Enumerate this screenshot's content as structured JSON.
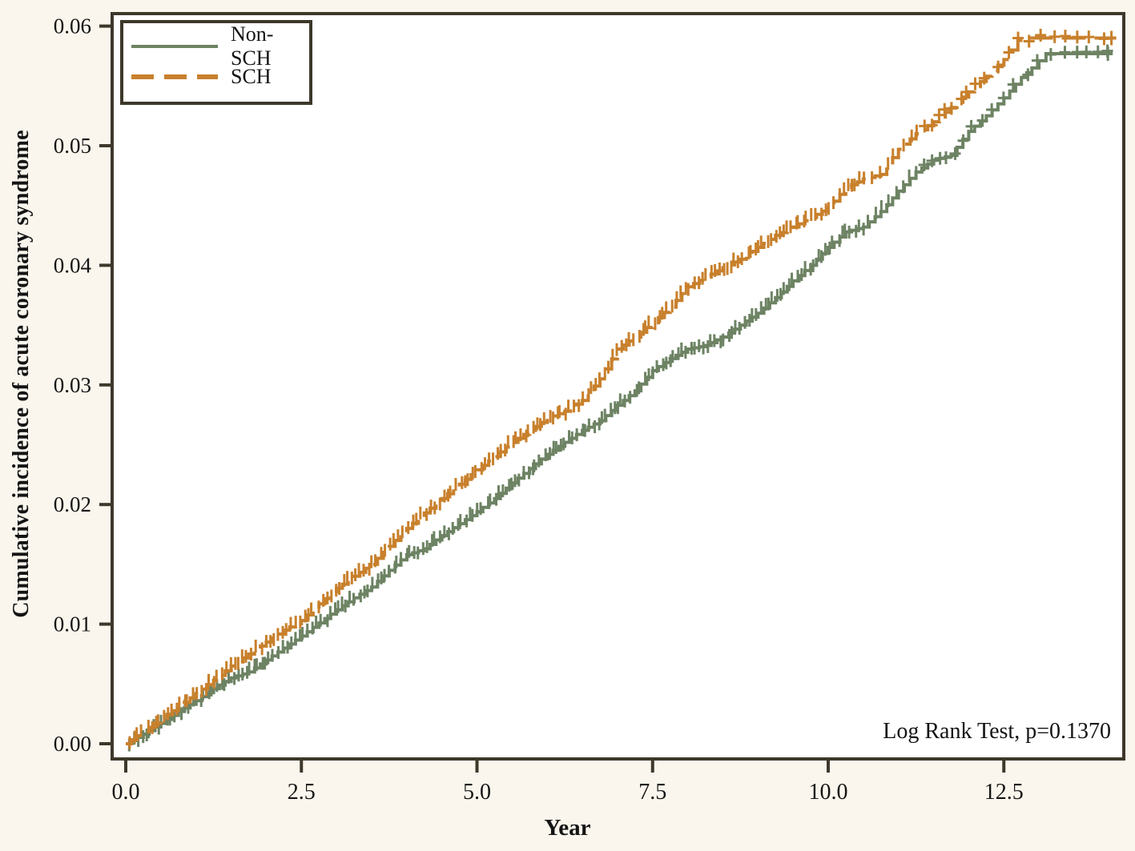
{
  "figure": {
    "x_label": "Year",
    "y_label": "Cumulative incidence of acute coronary syndrome",
    "annotation": "Log Rank Test, p=0.1370"
  },
  "colors": {
    "background": "#faf6ed",
    "plot_background": "#ffffff",
    "frame": "#3e382b",
    "text": "#141414",
    "non_sch": "#6d8363",
    "sch": "#c8802c"
  },
  "chart_data": {
    "type": "line",
    "subtype": "kaplan-meier-cumulative-incidence",
    "title": "",
    "xlabel": "Year",
    "ylabel": "Cumulative incidence of acute coronary syndrome",
    "xlim": [
      -0.2,
      14.2
    ],
    "ylim": [
      -0.001,
      0.061
    ],
    "x_ticks": [
      0.0,
      2.5,
      5.0,
      7.5,
      10.0,
      12.5
    ],
    "x_tick_labels": [
      "0.0",
      "2.5",
      "5.0",
      "7.5",
      "10.0",
      "12.5"
    ],
    "y_ticks": [
      0.0,
      0.01,
      0.02,
      0.03,
      0.04,
      0.05,
      0.06
    ],
    "y_tick_labels": [
      "0.00",
      "0.01",
      "0.02",
      "0.03",
      "0.04",
      "0.05",
      "0.06"
    ],
    "grid": false,
    "legend_position": "top-left",
    "annotation": "Log Rank Test, p=0.1370",
    "series": [
      {
        "name": "Non-SCH",
        "color": "#6d8363",
        "style": "solid",
        "censor_marks": true,
        "points": [
          [
            0,
            0
          ],
          [
            0.25,
            0.0008
          ],
          [
            0.5,
            0.0017
          ],
          [
            0.75,
            0.0027
          ],
          [
            1,
            0.0036
          ],
          [
            1.25,
            0.0046
          ],
          [
            1.5,
            0.0055
          ],
          [
            1.75,
            0.006
          ],
          [
            2,
            0.007
          ],
          [
            2.25,
            0.008
          ],
          [
            2.5,
            0.009
          ],
          [
            2.75,
            0.0101
          ],
          [
            3,
            0.0112
          ],
          [
            3.25,
            0.0122
          ],
          [
            3.5,
            0.0131
          ],
          [
            3.75,
            0.0145
          ],
          [
            4,
            0.0158
          ],
          [
            4.25,
            0.0163
          ],
          [
            4.5,
            0.0174
          ],
          [
            4.75,
            0.0184
          ],
          [
            5,
            0.0194
          ],
          [
            5.25,
            0.0205
          ],
          [
            5.5,
            0.0218
          ],
          [
            5.75,
            0.023
          ],
          [
            6,
            0.0242
          ],
          [
            6.25,
            0.0252
          ],
          [
            6.5,
            0.0262
          ],
          [
            6.75,
            0.027
          ],
          [
            7,
            0.0283
          ],
          [
            7.25,
            0.0295
          ],
          [
            7.5,
            0.0312
          ],
          [
            7.75,
            0.0322
          ],
          [
            8,
            0.033
          ],
          [
            8.25,
            0.0333
          ],
          [
            8.5,
            0.034
          ],
          [
            8.75,
            0.035
          ],
          [
            9,
            0.036
          ],
          [
            9.25,
            0.0373
          ],
          [
            9.5,
            0.0387
          ],
          [
            9.75,
            0.04
          ],
          [
            10,
            0.0415
          ],
          [
            10.25,
            0.0428
          ],
          [
            10.5,
            0.0432
          ],
          [
            10.75,
            0.0445
          ],
          [
            11,
            0.0462
          ],
          [
            11.25,
            0.0478
          ],
          [
            11.5,
            0.0488
          ],
          [
            11.75,
            0.0492
          ],
          [
            12,
            0.0512
          ],
          [
            12.25,
            0.0525
          ],
          [
            12.5,
            0.054
          ],
          [
            12.75,
            0.0557
          ],
          [
            12.9,
            0.0565
          ],
          [
            13.1,
            0.0577
          ],
          [
            14.05,
            0.0577
          ]
        ]
      },
      {
        "name": "SCH",
        "color": "#c8802c",
        "style": "dashed",
        "censor_marks": true,
        "points": [
          [
            0,
            0
          ],
          [
            0.25,
            0.001
          ],
          [
            0.5,
            0.0021
          ],
          [
            0.75,
            0.0031
          ],
          [
            1,
            0.0042
          ],
          [
            1.25,
            0.0053
          ],
          [
            1.5,
            0.0065
          ],
          [
            1.75,
            0.0075
          ],
          [
            2,
            0.0085
          ],
          [
            2.25,
            0.0095
          ],
          [
            2.5,
            0.0103
          ],
          [
            2.75,
            0.0117
          ],
          [
            3,
            0.013
          ],
          [
            3.25,
            0.014
          ],
          [
            3.5,
            0.015
          ],
          [
            3.75,
            0.0165
          ],
          [
            4,
            0.018
          ],
          [
            4.25,
            0.0193
          ],
          [
            4.5,
            0.0205
          ],
          [
            4.75,
            0.0217
          ],
          [
            5,
            0.0229
          ],
          [
            5.25,
            0.024
          ],
          [
            5.5,
            0.0252
          ],
          [
            5.75,
            0.0262
          ],
          [
            6,
            0.0272
          ],
          [
            6.25,
            0.0278
          ],
          [
            6.5,
            0.0287
          ],
          [
            6.75,
            0.0305
          ],
          [
            7,
            0.033
          ],
          [
            7.25,
            0.034
          ],
          [
            7.5,
            0.0352
          ],
          [
            7.75,
            0.0365
          ],
          [
            8,
            0.0382
          ],
          [
            8.25,
            0.039
          ],
          [
            8.5,
            0.0398
          ],
          [
            8.75,
            0.0405
          ],
          [
            9,
            0.0415
          ],
          [
            9.25,
            0.0425
          ],
          [
            9.5,
            0.0432
          ],
          [
            9.75,
            0.044
          ],
          [
            10,
            0.0448
          ],
          [
            10.25,
            0.0465
          ],
          [
            10.5,
            0.0472
          ],
          [
            10.75,
            0.0476
          ],
          [
            11,
            0.0497
          ],
          [
            11.25,
            0.051
          ],
          [
            11.5,
            0.052
          ],
          [
            11.75,
            0.0532
          ],
          [
            12,
            0.0545
          ],
          [
            12.25,
            0.0558
          ],
          [
            12.5,
            0.0572
          ],
          [
            12.7,
            0.0588
          ],
          [
            12.85,
            0.059
          ],
          [
            14.1,
            0.059
          ]
        ]
      }
    ]
  }
}
